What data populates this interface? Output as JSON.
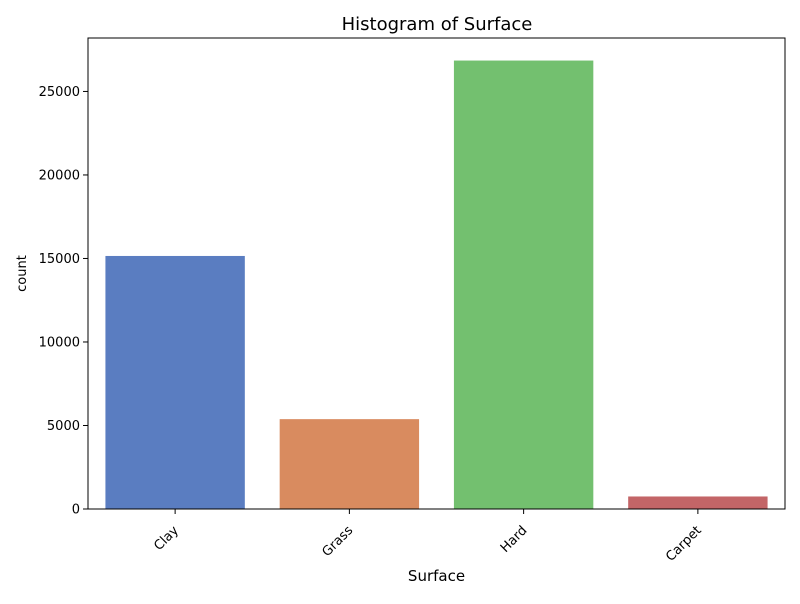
{
  "chart_data": {
    "type": "bar",
    "title": "Histogram of Surface",
    "xlabel": "Surface",
    "ylabel": "count",
    "categories": [
      "Clay",
      "Grass",
      "Hard",
      "Carpet"
    ],
    "values": [
      15150,
      5380,
      26850,
      750
    ],
    "colors": [
      "#5a7dc1",
      "#d98b5f",
      "#73c06f",
      "#c36567"
    ],
    "ylim": [
      0,
      28200
    ],
    "yticks": [
      0,
      5000,
      10000,
      15000,
      20000,
      25000
    ],
    "x_tick_rotation_deg": 45,
    "grid": false,
    "legend": "none"
  }
}
